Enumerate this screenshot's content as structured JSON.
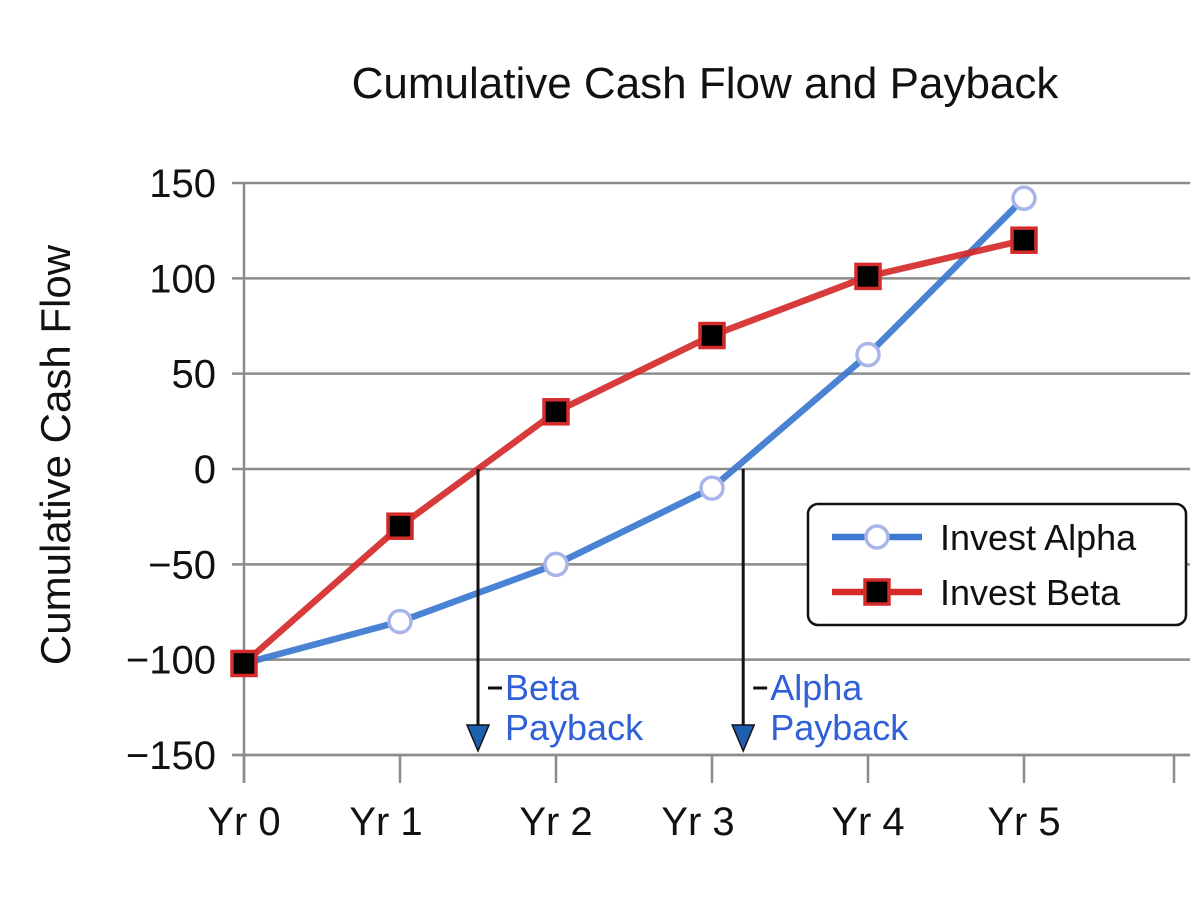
{
  "chart_data": {
    "type": "line",
    "title": "Cumulative Cash Flow and Payback",
    "ylabel": "Cumulative Cash Flow",
    "xlabel": "",
    "categories": [
      "Yr 0",
      "Yr 1",
      "Yr 2",
      "Yr 3",
      "Yr 4",
      "Yr 5"
    ],
    "yticks": [
      150,
      100,
      50,
      0,
      -50,
      -100,
      -150
    ],
    "ytick_labels": [
      "150",
      "100",
      "50",
      "0",
      "−50",
      "−100",
      "−150"
    ],
    "ylim": [
      -150,
      150
    ],
    "grid": true,
    "legend_position": "right",
    "series": [
      {
        "name": "Invest Alpha",
        "values": [
          -102,
          -80,
          -50,
          -10,
          60,
          142
        ],
        "color": "#3b78d0",
        "marker": "open-circle"
      },
      {
        "name": "Invest Beta",
        "values": [
          -102,
          -30,
          30,
          70,
          101,
          120
        ],
        "color": "#d42a2a",
        "marker": "filled-square"
      }
    ],
    "annotations": [
      {
        "id": "beta-payback",
        "lines": [
          "Beta",
          "Payback"
        ],
        "x": 1.5,
        "color": "#2f60d8"
      },
      {
        "id": "alpha-payback",
        "lines": [
          "Alpha",
          "Payback"
        ],
        "x": 3.2,
        "color": "#2f60d8"
      }
    ]
  }
}
